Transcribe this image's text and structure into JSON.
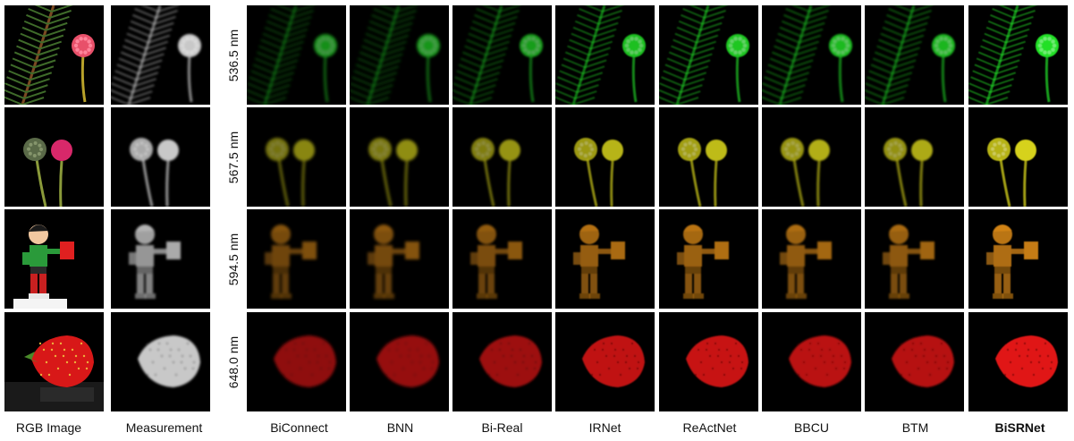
{
  "figure": {
    "rows": [
      {
        "key": "pine",
        "wavelength": "536.5 nm",
        "color": "#22e028"
      },
      {
        "key": "flowers",
        "wavelength": "567.5 nm",
        "color": "#d6d21a"
      },
      {
        "key": "toy",
        "wavelength": "594.5 nm",
        "color": "#e8921a"
      },
      {
        "key": "strawberry",
        "wavelength": "648.0 nm",
        "color": "#e01414"
      }
    ],
    "columns": [
      {
        "label": "RGB Image",
        "kind": "rgb",
        "quality": 1.0,
        "bold": false
      },
      {
        "label": "Measurement",
        "kind": "meas",
        "quality": 0.5,
        "bold": false
      },
      {
        "label": "BiConnect",
        "kind": "recon",
        "quality": 0.35,
        "bold": false
      },
      {
        "label": "BNN",
        "kind": "recon",
        "quality": 0.4,
        "bold": false
      },
      {
        "label": "Bi-Real",
        "kind": "recon",
        "quality": 0.45,
        "bold": false
      },
      {
        "label": "IRNet",
        "kind": "recon",
        "quality": 0.75,
        "bold": false
      },
      {
        "label": "ReActNet",
        "kind": "recon",
        "quality": 0.8,
        "bold": false
      },
      {
        "label": "BBCU",
        "kind": "recon",
        "quality": 0.7,
        "bold": false
      },
      {
        "label": "BTM",
        "kind": "recon",
        "quality": 0.65,
        "bold": false
      },
      {
        "label": "BiSRNet",
        "kind": "recon",
        "quality": 1.0,
        "bold": true
      }
    ]
  }
}
